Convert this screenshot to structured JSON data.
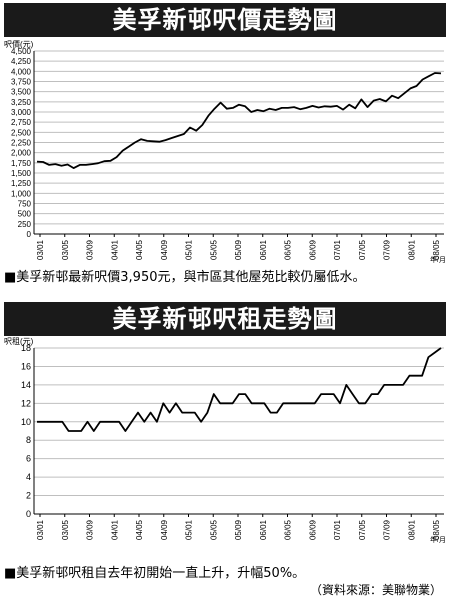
{
  "chart_data": [
    {
      "type": "line",
      "title": "美孚新邨呎價走勢圖",
      "ylabel": "呎價(元)",
      "xunit": "年/月",
      "ylim": [
        0,
        4500
      ],
      "yticks": [
        "0",
        "250",
        "500",
        "750",
        "1,000",
        "1,250",
        "1,500",
        "1,750",
        "2,000",
        "2,250",
        "2,500",
        "2,750",
        "3,000",
        "3,250",
        "3,500",
        "3,750",
        "4,000",
        "4,250",
        "4,500"
      ],
      "xticks": [
        "03/01",
        "03/05",
        "03/09",
        "04/01",
        "04/05",
        "04/09",
        "05/01",
        "05/05",
        "05/09",
        "06/01",
        "06/05",
        "06/09",
        "07/01",
        "07/05",
        "07/09",
        "08/01",
        "08/05"
      ],
      "grid": true,
      "values": [
        1780,
        1770,
        1700,
        1720,
        1680,
        1710,
        1620,
        1700,
        1700,
        1720,
        1740,
        1790,
        1800,
        1890,
        2050,
        2150,
        2250,
        2330,
        2290,
        2280,
        2270,
        2310,
        2360,
        2410,
        2460,
        2620,
        2540,
        2680,
        2910,
        3080,
        3230,
        3080,
        3100,
        3180,
        3140,
        3000,
        3050,
        3020,
        3080,
        3050,
        3100,
        3100,
        3120,
        3070,
        3100,
        3150,
        3110,
        3140,
        3130,
        3150,
        3060,
        3180,
        3090,
        3310,
        3120,
        3280,
        3320,
        3260,
        3400,
        3340,
        3460,
        3580,
        3640,
        3800,
        3880,
        3960,
        3950
      ]
    },
    {
      "type": "line",
      "title": "美孚新邨呎租走勢圖",
      "ylabel": "呎租(元)",
      "xunit": "年/月",
      "ylim": [
        0,
        18
      ],
      "yticks": [
        "0",
        "2",
        "4",
        "6",
        "8",
        "10",
        "12",
        "14",
        "16",
        "18"
      ],
      "xticks": [
        "03/01",
        "03/05",
        "03/09",
        "04/01",
        "04/05",
        "04/09",
        "05/01",
        "05/05",
        "05/09",
        "06/01",
        "06/05",
        "06/09",
        "07/01",
        "07/05",
        "07/09",
        "08/01",
        "08/05"
      ],
      "grid": true,
      "values": [
        10,
        10,
        10,
        10,
        10,
        9,
        9,
        9,
        10,
        9,
        10,
        10,
        10,
        10,
        9,
        10,
        11,
        10,
        11,
        10,
        12,
        11,
        12,
        11,
        11,
        11,
        10,
        11,
        13,
        12,
        12,
        12,
        13,
        13,
        12,
        12,
        12,
        11,
        11,
        12,
        12,
        12,
        12,
        12,
        12,
        13,
        13,
        13,
        12,
        14,
        13,
        12,
        12,
        13,
        13,
        14,
        14,
        14,
        14,
        15,
        15,
        15,
        17,
        17.5,
        18
      ]
    }
  ],
  "captions": {
    "price": "■美孚新邨最新呎價3,950元，與市區其他屋苑比較仍屬低水。",
    "rent": "■美孚新邨呎租自去年初開始一直上升，升幅50%。",
    "source": "（資料來源：美聯物業）"
  },
  "colors": {
    "banner": "#1a1a1a",
    "line": "#000000",
    "grid": "#bfbfbf"
  }
}
